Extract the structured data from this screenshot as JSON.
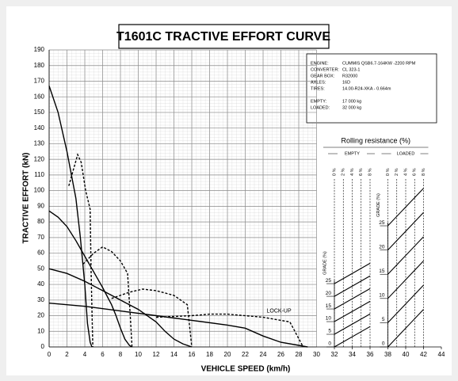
{
  "chart_data": {
    "type": "line",
    "title": "T1601C TRACTIVE EFFORT CURVE",
    "xlabel": "VEHICLE SPEED (km/h)",
    "ylabel": "TRACTIVE EFFORT (kN)",
    "xlim": [
      0,
      44
    ],
    "ylim": [
      0,
      190
    ],
    "xticks": [
      0,
      2,
      4,
      6,
      8,
      10,
      12,
      14,
      16,
      18,
      20,
      22,
      24,
      26,
      28,
      30,
      32,
      34,
      36,
      38,
      40,
      42,
      44
    ],
    "yticks": [
      0,
      10,
      20,
      30,
      40,
      50,
      60,
      70,
      80,
      90,
      100,
      110,
      120,
      130,
      140,
      150,
      160,
      170,
      180,
      190
    ],
    "grid": true,
    "grid_xlim": [
      0,
      30
    ],
    "series": [
      {
        "color": "#000000",
        "style": "solid",
        "x": [
          0,
          1,
          2,
          3,
          3.5,
          4,
          4.3,
          4.6,
          4.8
        ],
        "values": [
          167,
          150,
          125,
          95,
          70,
          40,
          15,
          3,
          0
        ]
      },
      {
        "color": "#000000",
        "style": "solid",
        "x": [
          0,
          1,
          2,
          3,
          4,
          5,
          6,
          7,
          7.5,
          8,
          8.5,
          9,
          9.3
        ],
        "values": [
          87,
          83,
          77,
          68,
          58,
          48,
          38,
          27,
          20,
          12,
          5,
          1,
          0
        ]
      },
      {
        "color": "#000000",
        "style": "solid",
        "x": [
          0,
          2,
          4,
          6,
          8,
          10,
          12,
          13,
          14,
          15,
          16
        ],
        "values": [
          50,
          47,
          42,
          36,
          30,
          24,
          16,
          10,
          5,
          2,
          0
        ]
      },
      {
        "color": "#000000",
        "style": "solid",
        "x": [
          0,
          4,
          8,
          12,
          16,
          20,
          22,
          24,
          26,
          28,
          29
        ],
        "values": [
          28,
          26,
          23,
          20,
          17,
          14,
          12,
          7,
          3,
          1,
          0
        ]
      },
      {
        "color": "#000000",
        "style": "dashed",
        "x": [
          2.2,
          3.2,
          3.6,
          4.1,
          4.6,
          4.7,
          4.9
        ],
        "values": [
          103,
          123,
          118,
          100,
          88,
          50,
          0
        ]
      },
      {
        "color": "#000000",
        "style": "dashed",
        "x": [
          3.8,
          5,
          6,
          7,
          8,
          8.8,
          9.1,
          9.3
        ],
        "values": [
          53,
          60,
          64,
          61,
          55,
          47,
          20,
          0
        ]
      },
      {
        "color": "#000000",
        "style": "dashed",
        "x": [
          7,
          9,
          10.5,
          12,
          14,
          15.5,
          16
        ],
        "values": [
          31,
          35,
          37,
          36,
          33,
          27,
          0
        ]
      },
      {
        "color": "#000000",
        "style": "dashed",
        "x": [
          12,
          16,
          18,
          20,
          24,
          27,
          28.5
        ],
        "values": [
          19,
          20,
          21,
          21,
          19,
          16,
          0
        ]
      }
    ],
    "annotations": [
      {
        "text": "LOCK-UP",
        "x": 24.4,
        "y": 23
      }
    ],
    "info": [
      {
        "label": "ENGINE:",
        "value": "CUMMIS QSB6.7-164KW -2200 RPM"
      },
      {
        "label": "CONVERTER:",
        "value": "CL 323-1"
      },
      {
        "label": "GEAR BOX:",
        "value": "R32000"
      },
      {
        "label": "AXLES:",
        "value": "16D"
      },
      {
        "label": "TIRES:",
        "value": "14.00-R24-XKA - 0.664m"
      },
      {
        "label": "EMPTY:",
        "value": "17 000 kg"
      },
      {
        "label": "LOADED:",
        "value": "32 000 kg"
      }
    ],
    "rolling_title": "Rolling resistance (%)",
    "nomograms": [
      {
        "label": "EMPTY",
        "grade_label": "GRADE (%)",
        "rolling_ticks": [
          {
            "value": 32,
            "label": "0 %"
          },
          {
            "value": 33,
            "label": "2 %"
          },
          {
            "value": 34,
            "label": "4 %"
          },
          {
            "value": 35,
            "label": "6 %"
          },
          {
            "value": 36,
            "label": "8 %"
          }
        ],
        "grade_ticks": [
          0,
          {
            "value": 8.1,
            "label": "5"
          },
          {
            "value": 16.2,
            "label": "10"
          },
          {
            "value": 24.3,
            "label": "15"
          },
          {
            "value": 32.4,
            "label": "20"
          },
          {
            "value": 40.5,
            "label": "25"
          }
        ],
        "lines": [
          {
            "x": [
              32,
              36
            ],
            "values": [
              0,
              13
            ]
          },
          {
            "x": [
              32,
              36
            ],
            "values": [
              8.1,
              21.1
            ]
          },
          {
            "x": [
              32,
              36
            ],
            "values": [
              16.2,
              29.2
            ]
          },
          {
            "x": [
              32,
              36
            ],
            "values": [
              24.3,
              37.3
            ]
          },
          {
            "x": [
              32,
              36
            ],
            "values": [
              32.4,
              45.4
            ]
          },
          {
            "x": [
              32,
              36
            ],
            "values": [
              40.5,
              53.5
            ]
          }
        ]
      },
      {
        "label": "LOADED",
        "grade_label": "GRADE (%)",
        "rolling_ticks": [
          {
            "value": 38,
            "label": "0 %"
          },
          {
            "value": 39,
            "label": "2 %"
          },
          {
            "value": 40,
            "label": "4 %"
          },
          {
            "value": 41,
            "label": "6 %"
          },
          {
            "value": 42,
            "label": "8 %"
          }
        ],
        "grade_ticks": [
          0,
          {
            "value": 15.5,
            "label": "5"
          },
          {
            "value": 31,
            "label": "10"
          },
          {
            "value": 46.5,
            "label": "15"
          },
          {
            "value": 62,
            "label": "20"
          },
          {
            "value": 77.5,
            "label": "25"
          }
        ],
        "lines": [
          {
            "x": [
              38,
              42
            ],
            "values": [
              0,
              24
            ]
          },
          {
            "x": [
              38,
              42
            ],
            "values": [
              15.5,
              39.5
            ]
          },
          {
            "x": [
              38,
              42
            ],
            "values": [
              31,
              55
            ]
          },
          {
            "x": [
              38,
              42
            ],
            "values": [
              46.5,
              70.5
            ]
          },
          {
            "x": [
              38,
              42
            ],
            "values": [
              62,
              86
            ]
          },
          {
            "x": [
              38,
              42
            ],
            "values": [
              77.5,
              101.5
            ]
          }
        ]
      }
    ]
  }
}
